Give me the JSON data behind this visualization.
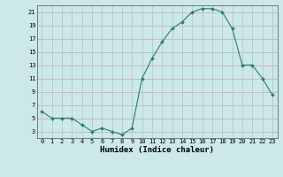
{
  "x": [
    0,
    1,
    2,
    3,
    4,
    5,
    6,
    7,
    8,
    9,
    10,
    11,
    12,
    13,
    14,
    15,
    16,
    17,
    18,
    19,
    20,
    21,
    22,
    23
  ],
  "y": [
    6,
    5,
    5,
    5,
    4,
    3,
    3.5,
    3,
    2.5,
    3.5,
    11,
    14,
    16.5,
    18.5,
    19.5,
    21,
    21.5,
    21.5,
    21,
    18.5,
    13,
    13,
    11,
    8.5
  ],
  "line_color": "#2e7d6e",
  "marker_color": "#2e7d6e",
  "bg_color": "#cce8e8",
  "grid_h_color": "#c8a8a8",
  "grid_v_color": "#a8c8c0",
  "xlabel": "Humidex (Indice chaleur)",
  "xlabel_fontsize": 6.5,
  "ylabel_ticks": [
    3,
    5,
    7,
    9,
    11,
    13,
    15,
    17,
    19,
    21
  ],
  "xlim": [
    -0.5,
    23.5
  ],
  "ylim": [
    2.0,
    22.0
  ]
}
